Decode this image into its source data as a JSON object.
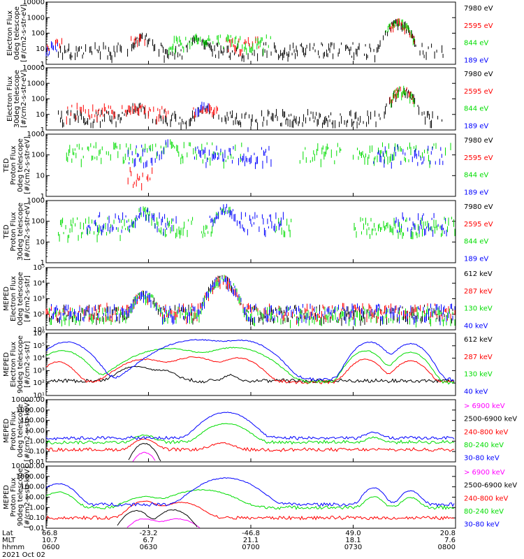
{
  "x_axis": {
    "row_labels": [
      "Lat",
      "MLT",
      "hhmm"
    ],
    "ticks": [
      {
        "lat": "66.8",
        "mlt": "10.7",
        "time": "0600"
      },
      {
        "lat": "-23.2",
        "mlt": "6.7",
        "time": "0630"
      },
      {
        "lat": "-46.8",
        "mlt": "21.1",
        "time": "0700"
      },
      {
        "lat": "49.0",
        "mlt": "18.1",
        "time": "0730"
      },
      {
        "lat": "20.8",
        "mlt": "7.6",
        "time": "0800"
      }
    ],
    "date": "2021 Oct 02"
  },
  "chart_data": [
    {
      "type": "scatter",
      "ylabel": [
        "Electron Flux",
        "0deg telescope",
        "[#/cm2-s-str-eV]"
      ],
      "yscale": "log",
      "ylim": [
        1,
        10000
      ],
      "ytick_labels": [
        "1",
        "10",
        "100",
        "1000",
        "10000"
      ],
      "x": [
        "0600",
        "0800"
      ],
      "series": [
        {
          "name": "7980 eV",
          "color": "#000000",
          "level": 10,
          "active": [
            [
              0.03,
              0.97
            ]
          ]
        },
        {
          "name": "2595 eV",
          "color": "#ff0000",
          "level": 25,
          "active": [
            [
              0.0,
              0.04
            ],
            [
              0.2,
              0.25
            ],
            [
              0.44,
              0.52
            ],
            [
              0.84,
              0.9
            ]
          ]
        },
        {
          "name": "844 eV",
          "color": "#00dd00",
          "level": 30,
          "active": [
            [
              0.3,
              0.55
            ],
            [
              0.83,
              0.9
            ]
          ]
        },
        {
          "name": "189 eV",
          "color": "#0000ff",
          "level": 12,
          "active": [
            [
              0.0,
              0.03
            ]
          ]
        }
      ],
      "peaks": [
        [
          0.24,
          100
        ],
        [
          0.37,
          80
        ],
        [
          0.86,
          800
        ]
      ]
    },
    {
      "type": "scatter",
      "ylabel": [
        "Electron Flux",
        "30deg telescope",
        "[#/cm2-s-str-eV]"
      ],
      "yscale": "log",
      "ylim": [
        1,
        10000
      ],
      "ytick_labels": [
        "1",
        "10",
        "100",
        "1000",
        "10000"
      ],
      "series": [
        {
          "name": "7980 eV",
          "color": "#000000",
          "level": 8,
          "active": [
            [
              0.03,
              0.97
            ]
          ]
        },
        {
          "name": "2595 eV",
          "color": "#ff0000",
          "level": 20,
          "active": [
            [
              0.05,
              0.3
            ],
            [
              0.36,
              0.42
            ],
            [
              0.84,
              0.9
            ]
          ]
        },
        {
          "name": "844 eV",
          "color": "#00dd00",
          "level": 15,
          "active": [
            [
              0.84,
              0.9
            ]
          ]
        },
        {
          "name": "189 eV",
          "color": "#0000ff",
          "level": 25,
          "active": [
            [
              0.36,
              0.4
            ]
          ]
        }
      ],
      "peaks": [
        [
          0.22,
          60
        ],
        [
          0.39,
          50
        ],
        [
          0.87,
          600
        ]
      ]
    },
    {
      "type": "scatter",
      "ylabel": [
        "TED",
        "Proton Flux",
        "0deg telescope",
        "[#/cm2-s-str-eV]"
      ],
      "yscale": "log",
      "ylim": [
        1,
        1000
      ],
      "ytick_labels": [
        "1",
        "10",
        "100",
        "1000"
      ],
      "series": [
        {
          "name": "7980 eV",
          "color": "#000000",
          "level": 0,
          "active": []
        },
        {
          "name": "2595 eV",
          "color": "#ff0000",
          "level": 10,
          "active": [
            [
              0.2,
              0.26
            ]
          ]
        },
        {
          "name": "844 eV",
          "color": "#00dd00",
          "level": 150,
          "active": [
            [
              0.05,
              0.48
            ],
            [
              0.62,
              0.72
            ],
            [
              0.75,
              1.0
            ]
          ]
        },
        {
          "name": "189 eV",
          "color": "#0000ff",
          "level": 120,
          "active": [
            [
              0.2,
              0.3
            ],
            [
              0.36,
              0.55
            ],
            [
              0.8,
              0.97
            ]
          ]
        }
      ],
      "peaks": [
        [
          0.3,
          500
        ],
        [
          0.75,
          250
        ]
      ]
    },
    {
      "type": "scatter",
      "ylabel": [
        "TED",
        "Proton Flux",
        "30deg telescope",
        "[#/cm2-s-str-eV]"
      ],
      "yscale": "log",
      "ylim": [
        1,
        1000
      ],
      "ytick_labels": [
        "1",
        "10",
        "100",
        "1000"
      ],
      "series": [
        {
          "name": "7980 eV",
          "color": "#000000",
          "level": 0,
          "active": []
        },
        {
          "name": "2595 eV",
          "color": "#ff0000",
          "level": 0,
          "active": []
        },
        {
          "name": "844 eV",
          "color": "#00dd00",
          "level": 60,
          "active": [
            [
              0.03,
              0.36
            ],
            [
              0.38,
              0.45
            ],
            [
              0.56,
              0.6
            ],
            [
              0.75,
              1.0
            ]
          ]
        },
        {
          "name": "189 eV",
          "color": "#0000ff",
          "level": 100,
          "active": [
            [
              0.1,
              0.32
            ],
            [
              0.4,
              0.58
            ],
            [
              0.85,
              0.98
            ]
          ]
        }
      ],
      "peaks": [
        [
          0.24,
          500
        ],
        [
          0.44,
          600
        ]
      ]
    },
    {
      "type": "scatter",
      "ylabel": [
        "MEPED",
        "Electron Flux",
        "0deg telescope",
        "[#/cm2-s-str]"
      ],
      "yscale": "log",
      "ylim": [
        10,
        100000
      ],
      "ytick_labels": [
        "10^1",
        "10^2",
        "10^3",
        "10^4",
        "10^5"
      ],
      "series": [
        {
          "name": "612 keV",
          "color": "#000000",
          "level": 150,
          "active": [
            [
              0.0,
              1.0
            ]
          ]
        },
        {
          "name": "287 keV",
          "color": "#ff0000",
          "level": 200,
          "active": [
            [
              0.0,
              1.0
            ]
          ]
        },
        {
          "name": "130 keV",
          "color": "#00dd00",
          "level": 120,
          "active": [
            [
              0.0,
              1.0
            ]
          ]
        },
        {
          "name": "40 keV",
          "color": "#0000ff",
          "level": 180,
          "active": [
            [
              0.0,
              1.0
            ]
          ]
        }
      ],
      "peaks": [
        [
          0.24,
          3000
        ],
        [
          0.43,
          30000
        ]
      ]
    },
    {
      "type": "line",
      "ylabel": [
        "MEPED",
        "Electron Flux",
        "90deg telescope",
        "[#/cm2-s-str]"
      ],
      "yscale": "log",
      "ylim": [
        10,
        1000000
      ],
      "ytick_labels": [
        "10^1",
        "10^2",
        "10^3",
        "10^4",
        "10^5",
        "10^6"
      ],
      "series": [
        {
          "name": "612 keV",
          "color": "#000000",
          "humps": [
            [
              0.22,
              0.04,
              2000
            ],
            [
              0.29,
              0.03,
              800
            ],
            [
              0.45,
              0.02,
              300
            ]
          ],
          "base": 150
        },
        {
          "name": "287 keV",
          "color": "#ff0000",
          "humps": [
            [
              0.03,
              0.03,
              5000
            ],
            [
              0.24,
              0.05,
              8000
            ],
            [
              0.36,
              0.05,
              12000
            ],
            [
              0.47,
              0.04,
              10000
            ],
            [
              0.78,
              0.03,
              8000
            ],
            [
              0.89,
              0.03,
              6000
            ]
          ],
          "base": 120
        },
        {
          "name": "130 keV",
          "color": "#00dd00",
          "humps": [
            [
              0.04,
              0.04,
              40000
            ],
            [
              0.3,
              0.07,
              60000
            ],
            [
              0.46,
              0.06,
              70000
            ],
            [
              0.78,
              0.03,
              40000
            ],
            [
              0.89,
              0.03,
              30000
            ]
          ],
          "base": 110
        },
        {
          "name": "40 keV",
          "color": "#0000ff",
          "humps": [
            [
              0.05,
              0.04,
              200000
            ],
            [
              0.37,
              0.07,
              300000
            ],
            [
              0.48,
              0.05,
              250000
            ],
            [
              0.79,
              0.03,
              200000
            ],
            [
              0.89,
              0.03,
              150000
            ]
          ],
          "base": 200
        }
      ]
    },
    {
      "type": "line",
      "ylabel": [
        "MEPED",
        "Proton Flux",
        "0deg telescope",
        "[#/cm2-s-str-keV]"
      ],
      "yscale": "log",
      "ylim": [
        0.01,
        10000
      ],
      "ytick_labels": [
        "0.01",
        "0.10",
        "1.00",
        "10.00",
        "100.00",
        "1000.00",
        "10000.00"
      ],
      "series": [
        {
          "name": "> 6900 keV",
          "color": "#ff00ff",
          "humps": [
            [
              0.24,
              0.02,
              0.08
            ]
          ],
          "base": 0
        },
        {
          "name": "2500-6900 keV",
          "color": "#000000",
          "humps": [
            [
              0.24,
              0.02,
              0.6
            ]
          ],
          "base": 0
        },
        {
          "name": "240-800 keV",
          "color": "#ff0000",
          "humps": [
            [
              0.24,
              0.025,
              1.5
            ],
            [
              0.43,
              0.03,
              0.5
            ]
          ],
          "base": 0.15
        },
        {
          "name": "80-240 keV",
          "color": "#00dd00",
          "humps": [
            [
              0.24,
              0.025,
              3
            ],
            [
              0.44,
              0.04,
              50
            ],
            [
              0.8,
              0.02,
              1.5
            ]
          ],
          "base": 0.8
        },
        {
          "name": "30-80 keV",
          "color": "#0000ff",
          "humps": [
            [
              0.44,
              0.04,
              600
            ],
            [
              0.8,
              0.02,
              5
            ]
          ],
          "base": 2
        }
      ]
    },
    {
      "type": "line",
      "ylabel": [
        "MEPED",
        "Proton Flux",
        "90deg telescope",
        "[#/cm2-s-str-keV]"
      ],
      "yscale": "log",
      "ylim": [
        0.01,
        10000
      ],
      "ytick_labels": [
        "0.01",
        "0.10",
        "1.00",
        "10.00",
        "100.00",
        "1000.00",
        "10000.00"
      ],
      "series": [
        {
          "name": "> 6900 keV",
          "color": "#ff00ff",
          "humps": [
            [
              0.24,
              0.03,
              0.08
            ],
            [
              0.32,
              0.04,
              0.08
            ]
          ],
          "base": 0
        },
        {
          "name": "2500-6900 keV",
          "color": "#000000",
          "humps": [
            [
              0.22,
              0.025,
              0.5
            ],
            [
              0.31,
              0.03,
              0.6
            ]
          ],
          "base": 0
        },
        {
          "name": "240-800 keV",
          "color": "#ff0000",
          "humps": [
            [
              0.24,
              0.03,
              4
            ],
            [
              0.33,
              0.04,
              3
            ]
          ],
          "base": 0.1
        },
        {
          "name": "80-240 keV",
          "color": "#00dd00",
          "humps": [
            [
              0.03,
              0.03,
              30
            ],
            [
              0.24,
              0.04,
              10
            ],
            [
              0.38,
              0.06,
              50
            ],
            [
              0.8,
              0.02,
              10
            ],
            [
              0.89,
              0.02,
              8
            ]
          ],
          "base": 1
        },
        {
          "name": "30-80 keV",
          "color": "#0000ff",
          "humps": [
            [
              0.03,
              0.03,
              200
            ],
            [
              0.44,
              0.05,
              700
            ],
            [
              0.8,
              0.02,
              80
            ],
            [
              0.89,
              0.02,
              40
            ]
          ],
          "base": 2
        }
      ]
    }
  ]
}
